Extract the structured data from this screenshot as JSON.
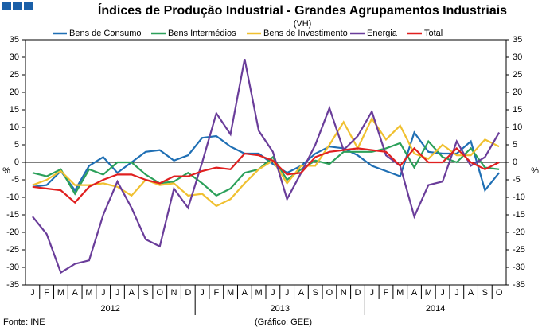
{
  "chart_data": {
    "type": "line",
    "title": "Índices de Produção Industrial - Grandes Agrupamentos Industriais",
    "subtitle": "(VH)",
    "y_label": "%",
    "y2_label": "%",
    "source": "Fonte: INE",
    "credit": "(Gráfico: GEE)",
    "categories": [
      "J",
      "F",
      "M",
      "A",
      "M",
      "J",
      "J",
      "A",
      "S",
      "O",
      "N",
      "D",
      "J",
      "F",
      "M",
      "A",
      "M",
      "J",
      "J",
      "A",
      "S",
      "O",
      "N",
      "D",
      "J",
      "F",
      "M",
      "A",
      "M",
      "J",
      "J",
      "A",
      "S",
      "O"
    ],
    "years": [
      "2012",
      "2013",
      "2014"
    ],
    "ylim": [
      -35,
      35
    ],
    "yticks": [
      -35,
      -30,
      -25,
      -20,
      -15,
      -10,
      -5,
      0,
      5,
      10,
      15,
      20,
      25,
      30,
      35
    ],
    "y2lim": [
      -35,
      35
    ],
    "y2ticks": [
      -35,
      -30,
      -25,
      -20,
      -15,
      -10,
      -5,
      0,
      5,
      10,
      15,
      20,
      25,
      30,
      35
    ],
    "legend": "top",
    "series": [
      {
        "name": "Bens de Consumo",
        "color": "#1f6fb4",
        "values": [
          -7,
          -6.5,
          -2.5,
          -8,
          -1,
          1.5,
          -3,
          0,
          3,
          3.5,
          0.5,
          2,
          7,
          7.5,
          4.5,
          2.5,
          2.5,
          -0.5,
          -3,
          -1,
          2.5,
          4.5,
          4,
          2,
          -1,
          -2.5,
          -4,
          8.5,
          3,
          2.5,
          2.5,
          6,
          -8,
          -3
        ]
      },
      {
        "name": "Bens Intermédios",
        "color": "#2ca05a",
        "values": [
          -3,
          -4,
          -2,
          -9,
          -2,
          -3.5,
          0,
          0,
          -3.5,
          -6,
          -5.5,
          -3,
          -6,
          -9.5,
          -7.5,
          -3,
          -2,
          1.5,
          -5,
          -2,
          0.5,
          -0.5,
          3,
          3,
          3,
          4,
          5.5,
          -1.5,
          6,
          1.5,
          0,
          4,
          -1.5,
          -2
        ]
      },
      {
        "name": "Bens de Investimento",
        "color": "#f0c030",
        "values": [
          -6.5,
          -5,
          -2.5,
          -6.5,
          -6.5,
          -6,
          -7,
          -9.5,
          -5,
          -6.5,
          -6,
          -9.5,
          -9,
          -12.5,
          -10.5,
          -6,
          -2,
          0.5,
          -6,
          -1,
          -1,
          5,
          11.5,
          4,
          12.5,
          6.5,
          10.5,
          2.5,
          1,
          5,
          2,
          2,
          6.5,
          4.5
        ]
      },
      {
        "name": "Energia",
        "color": "#6a3d9a",
        "values": [
          -15.5,
          -20.5,
          -31.5,
          -29,
          -28,
          -15,
          -5.5,
          -13,
          -22,
          -24,
          -7.5,
          -13,
          0,
          14,
          8,
          29.5,
          9,
          3,
          -10.5,
          -3,
          5,
          15.5,
          3.5,
          7.5,
          14.5,
          2,
          -1,
          -15.5,
          -6.5,
          -5.5,
          6,
          -1,
          1.5,
          8.5
        ]
      },
      {
        "name": "Total",
        "color": "#e02020",
        "values": [
          -7,
          -7.5,
          -8,
          -11.5,
          -7,
          -5,
          -3.5,
          -3.5,
          -5,
          -6,
          -4,
          -4,
          -2.5,
          -1.5,
          -2,
          2.5,
          2,
          0.5,
          -3.5,
          -3,
          1.5,
          3,
          3.5,
          4,
          3.5,
          3,
          -1,
          4,
          0,
          0,
          4,
          0,
          -2,
          0
        ]
      }
    ]
  }
}
